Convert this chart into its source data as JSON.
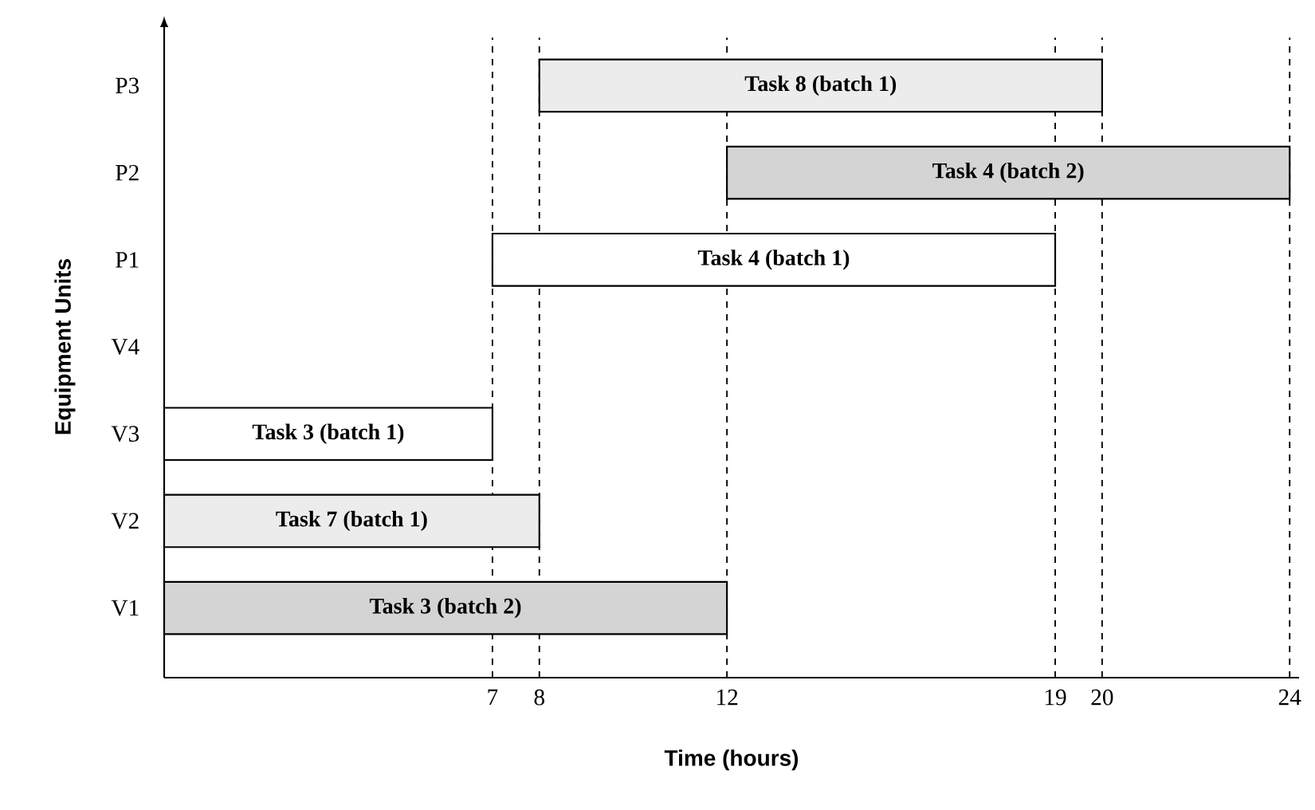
{
  "chart_data": {
    "type": "bar",
    "orientation": "horizontal",
    "xlabel": "Time (hours)",
    "ylabel": "Equipment Units",
    "categories": [
      "P3",
      "P2",
      "P1",
      "V4",
      "V3",
      "V2",
      "V1"
    ],
    "base": [
      8,
      12,
      7,
      null,
      0,
      0,
      0
    ],
    "values": [
      12,
      12,
      12,
      null,
      7,
      8,
      12
    ],
    "colors": [
      "#ececec",
      "#d4d4d4",
      "#ffffff",
      null,
      "#ffffff",
      "#ececec",
      "#d4d4d4"
    ],
    "value_labels": [
      "Task 8 (batch 1)",
      "Task 4 (batch 2)",
      "Task 4 (batch 1)",
      null,
      "Task 3 (batch 1)",
      "Task 7 (batch 1)",
      "Task 3 (batch 2)"
    ],
    "xlim": [
      0,
      24.2
    ],
    "xticks": [
      7,
      8,
      12,
      19,
      20,
      24
    ],
    "ref_lines": [
      {
        "axis": "x",
        "value": 7,
        "line_style": "dashed"
      },
      {
        "axis": "x",
        "value": 8,
        "line_style": "dashed"
      },
      {
        "axis": "x",
        "value": 12,
        "line_style": "dashed"
      },
      {
        "axis": "x",
        "value": 19,
        "line_style": "dashed"
      },
      {
        "axis": "x",
        "value": 20,
        "line_style": "dashed"
      },
      {
        "axis": "x",
        "value": 24,
        "line_style": "dashed"
      }
    ]
  }
}
